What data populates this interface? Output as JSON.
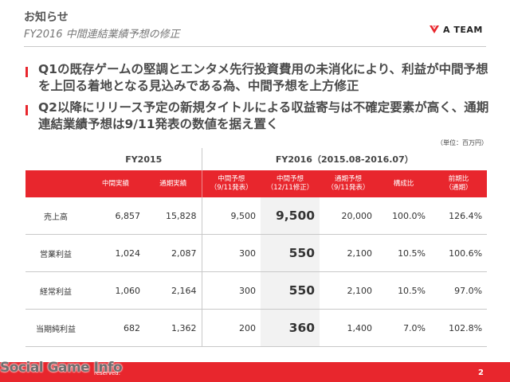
{
  "header": {
    "title": "お知らせ",
    "subtitle": "FY2016 中間連結業績予想の修正",
    "logo_text": "A TEAM"
  },
  "bullets": [
    "Q1の既存ゲームの堅調とエンタメ先行投資費用の未消化により、利益が中間予想を上回る着地となる見込みである為、中間予想を上方修正",
    "Q2以降にリリース予定の新規タイトルによる収益寄与は不確定要素が高く、通期連結業績予想は9/11発表の数値を据え置く"
  ],
  "unit": "（単位：百万円）",
  "table": {
    "group_headers": {
      "fy2015": "FY2015",
      "fy2016": "FY2016（2015.08-2016.07）"
    },
    "columns": [
      "中間実績",
      "通期実績",
      "中間予想\n（9/11発表）",
      "中間予想\n（12/11修正）",
      "通期予想\n（9/11発表）",
      "構成比",
      "前期比\n（通期）"
    ],
    "rows": [
      {
        "label": "売上高",
        "values": [
          "6,857",
          "15,828",
          "9,500",
          "9,500",
          "20,000",
          "100.0%",
          "126.4%"
        ]
      },
      {
        "label": "営業利益",
        "values": [
          "1,024",
          "2,087",
          "300",
          "550",
          "2,100",
          "10.5%",
          "100.6%"
        ]
      },
      {
        "label": "経常利益",
        "values": [
          "1,060",
          "2,164",
          "300",
          "550",
          "2,100",
          "10.5%",
          "97.0%"
        ]
      },
      {
        "label": "当期純利益",
        "values": [
          "682",
          "1,362",
          "200",
          "360",
          "1,400",
          "7.0%",
          "102.8%"
        ]
      }
    ]
  },
  "footer": {
    "copyright": "reserved.",
    "page": "2",
    "watermark": "Social Game Info"
  },
  "colors": {
    "accent": "#e8262d",
    "shade": "#f2f2f2"
  }
}
